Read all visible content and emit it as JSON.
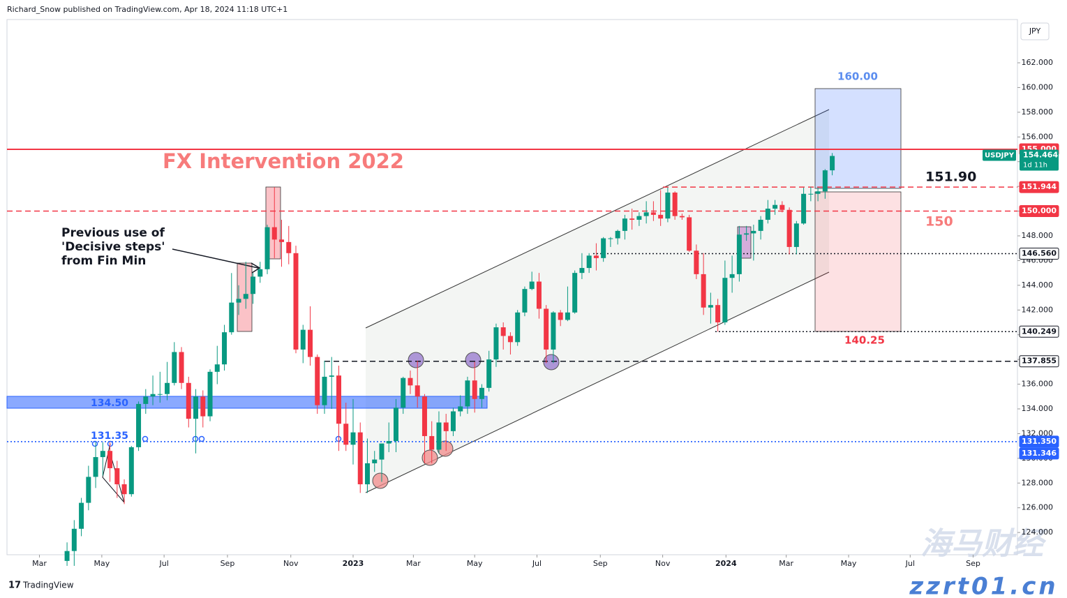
{
  "header": {
    "byline": "Richard_Snow published on TradingView.com, Apr 18, 2024 11:18 UTC+1"
  },
  "footer": {
    "brand": "TradingView"
  },
  "watermark": {
    "name": "海马财经",
    "site": "zzrt01.cn"
  },
  "chart_data": {
    "type": "candlestick",
    "currency": "JPY",
    "symbol": "USDJPY",
    "countdown": "1d 11h",
    "last_price": 154.464,
    "up_color": "#089981",
    "down_color": "#f23645",
    "x": [
      0,
      1,
      2,
      3,
      4,
      5,
      6,
      7,
      8,
      9,
      10,
      11,
      12,
      13,
      14,
      15,
      16,
      17,
      18,
      19,
      20,
      21,
      22,
      23,
      24,
      25,
      26,
      27,
      28,
      29,
      30,
      31,
      32,
      33,
      34,
      35,
      36,
      37,
      38,
      39,
      40,
      41,
      42,
      43,
      44,
      45,
      46,
      47,
      48,
      49,
      50,
      51,
      52,
      53,
      54,
      55,
      56,
      57,
      58,
      59,
      60,
      61,
      62,
      63,
      64,
      65,
      66,
      67,
      68,
      69,
      70,
      71,
      72,
      73,
      74,
      75,
      76,
      77,
      78,
      79,
      80,
      81,
      82,
      83,
      84,
      85,
      86,
      87,
      88,
      89,
      90,
      91,
      92,
      93,
      94,
      95,
      96,
      97,
      98,
      99,
      100,
      101,
      102,
      103,
      104,
      105,
      106,
      107
    ],
    "open": [
      121.7,
      122.5,
      124.3,
      126.4,
      128.5,
      130.1,
      130.6,
      129.2,
      127.9,
      127.1,
      130.9,
      134.4,
      135.0,
      135.2,
      135.2,
      136.1,
      138.6,
      136.1,
      133.2,
      135.0,
      133.4,
      137.0,
      137.6,
      140.2,
      142.6,
      142.9,
      143.3,
      144.7,
      145.3,
      148.7,
      147.7,
      147.5,
      146.6,
      138.8,
      140.4,
      138.2,
      134.3,
      136.6,
      136.7,
      132.8,
      131.1,
      132.1,
      127.9,
      129.6,
      129.9,
      131.2,
      131.4,
      134.1,
      136.5,
      135.9,
      135.0,
      131.8,
      130.7,
      132.9,
      132.2,
      133.8,
      134.2,
      136.3,
      134.8,
      135.7,
      138.0,
      140.6,
      139.9,
      139.4,
      141.8,
      143.7,
      144.3,
      142.1,
      138.8,
      141.8,
      141.2,
      141.8,
      145.0,
      145.4,
      146.4,
      146.2,
      147.8,
      147.8,
      148.4,
      149.4,
      149.3,
      149.6,
      149.9,
      149.7,
      149.4,
      151.5,
      149.6,
      149.5,
      146.8,
      144.9,
      142.2,
      142.4,
      141.0,
      144.6,
      144.9,
      148.1,
      148.2,
      148.4,
      149.3,
      150.2,
      150.5,
      150.1,
      147.1,
      149.0,
      151.4,
      151.4,
      151.6,
      153.3
    ],
    "high": [
      123.2,
      125.0,
      126.8,
      129.4,
      131.3,
      131.3,
      131.3,
      129.8,
      128.3,
      131.0,
      134.6,
      135.6,
      136.7,
      137.0,
      137.8,
      139.4,
      139.0,
      136.6,
      135.6,
      135.5,
      137.2,
      139.1,
      140.8,
      144.99,
      144.0,
      145.9,
      145.0,
      145.9,
      148.9,
      151.94,
      149.3,
      148.8,
      147.2,
      140.8,
      142.3,
      138.4,
      137.9,
      138.2,
      137.5,
      134.5,
      134.8,
      132.9,
      131.6,
      130.6,
      131.2,
      132.9,
      134.8,
      136.6,
      137.1,
      137.9,
      135.2,
      133.0,
      133.8,
      133.6,
      134.1,
      135.1,
      136.6,
      137.8,
      136.0,
      138.7,
      140.9,
      141.0,
      140.2,
      142.0,
      143.9,
      145.1,
      145.0,
      142.4,
      141.9,
      142.0,
      143.9,
      145.2,
      146.6,
      146.6,
      147.4,
      147.9,
      147.9,
      148.5,
      149.7,
      150.2,
      149.9,
      150.8,
      150.8,
      151.7,
      151.9,
      151.6,
      149.8,
      149.7,
      147.3,
      146.6,
      143.4,
      142.9,
      146.0,
      146.4,
      148.8,
      148.8,
      148.9,
      149.6,
      150.9,
      150.9,
      150.8,
      150.3,
      149.2,
      151.9,
      151.97,
      151.9,
      153.4,
      154.7
    ],
    "low": [
      121.3,
      121.3,
      123.7,
      125.8,
      127.6,
      128.6,
      128.1,
      126.8,
      126.3,
      126.9,
      130.6,
      133.6,
      134.3,
      134.5,
      134.7,
      135.9,
      135.6,
      132.5,
      130.4,
      132.5,
      133.0,
      136.0,
      137.1,
      140.0,
      141.6,
      142.1,
      142.5,
      144.2,
      144.9,
      146.2,
      145.5,
      145.7,
      138.5,
      137.7,
      137.5,
      133.6,
      133.6,
      134.0,
      130.6,
      130.6,
      129.5,
      127.2,
      127.2,
      128.9,
      128.1,
      130.5,
      130.5,
      133.6,
      135.2,
      134.1,
      129.6,
      129.6,
      130.4,
      130.6,
      131.8,
      133.4,
      133.6,
      133.7,
      134.1,
      135.4,
      137.4,
      138.8,
      138.4,
      139.1,
      141.5,
      143.6,
      141.3,
      137.7,
      137.7,
      140.7,
      141.1,
      141.7,
      144.5,
      145.0,
      145.2,
      145.9,
      147.1,
      147.3,
      147.7,
      148.5,
      148.8,
      149.0,
      149.2,
      148.8,
      149.1,
      149.3,
      149.3,
      146.7,
      144.5,
      141.6,
      140.9,
      140.25,
      140.8,
      143.4,
      144.3,
      147.6,
      146.0,
      147.7,
      149.0,
      149.7,
      149.9,
      146.5,
      146.5,
      148.9,
      150.8,
      150.8,
      151.0,
      152.9
    ],
    "close": [
      122.5,
      124.3,
      126.4,
      128.5,
      130.1,
      130.6,
      129.2,
      127.9,
      127.1,
      130.9,
      134.4,
      135.0,
      135.2,
      135.2,
      136.1,
      138.6,
      136.1,
      133.2,
      135.0,
      133.4,
      137.0,
      137.6,
      140.2,
      142.6,
      142.9,
      143.3,
      144.7,
      145.3,
      148.7,
      147.7,
      147.5,
      146.6,
      138.8,
      140.4,
      138.2,
      134.3,
      136.6,
      136.7,
      132.8,
      131.1,
      132.1,
      127.9,
      129.6,
      129.9,
      131.2,
      131.4,
      134.1,
      136.5,
      135.9,
      135.0,
      131.8,
      130.7,
      132.9,
      132.2,
      133.8,
      134.2,
      136.3,
      134.8,
      135.7,
      138.0,
      140.6,
      139.9,
      139.4,
      141.8,
      143.7,
      144.3,
      142.1,
      138.8,
      141.8,
      141.2,
      141.8,
      145.0,
      145.4,
      146.4,
      146.2,
      147.8,
      147.8,
      148.4,
      149.4,
      149.3,
      149.6,
      149.9,
      149.7,
      149.4,
      151.5,
      149.6,
      149.5,
      146.8,
      144.9,
      142.2,
      142.4,
      141.0,
      144.6,
      144.9,
      148.1,
      148.2,
      148.4,
      149.3,
      150.2,
      150.5,
      150.1,
      147.1,
      149.0,
      151.4,
      151.4,
      151.6,
      153.3,
      154.464
    ],
    "xlim": [
      -8.4,
      132.9
    ],
    "xticks": [
      {
        "value": -3.86,
        "label": "Mar"
      },
      {
        "value": 4.86,
        "label": "May"
      },
      {
        "value": 13.57,
        "label": "Jul"
      },
      {
        "value": 22.43,
        "label": "Sep"
      },
      {
        "value": 31.29,
        "label": "Nov"
      },
      {
        "value": 40,
        "label": "2023"
      },
      {
        "value": 48.43,
        "label": "Mar"
      },
      {
        "value": 57,
        "label": "May"
      },
      {
        "value": 65.71,
        "label": "Jul"
      },
      {
        "value": 74.57,
        "label": "Sep"
      },
      {
        "value": 83.29,
        "label": "Nov"
      },
      {
        "value": 92.14,
        "label": "2024"
      },
      {
        "value": 100.57,
        "label": "Mar"
      },
      {
        "value": 109.29,
        "label": "May"
      },
      {
        "value": 117.9,
        "label": "Jul"
      },
      {
        "value": 126.7,
        "label": "Sep"
      }
    ],
    "ylim": [
      122.2,
      165.5
    ],
    "yticks": [
      {
        "value": 124,
        "label": "124.000"
      },
      {
        "value": 126,
        "label": "126.000"
      },
      {
        "value": 128,
        "label": "128.000"
      },
      {
        "value": 130,
        "label": "130.000"
      },
      {
        "value": 132,
        "label": "132.000"
      },
      {
        "value": 134,
        "label": "134.000"
      },
      {
        "value": 136,
        "label": "136.000"
      },
      {
        "value": 138,
        "label": "138.000"
      },
      {
        "value": 140,
        "label": "140.000"
      },
      {
        "value": 142,
        "label": "142.000"
      },
      {
        "value": 144,
        "label": "144.000"
      },
      {
        "value": 146,
        "label": "146.000"
      },
      {
        "value": 148,
        "label": "148.000"
      },
      {
        "value": 150,
        "label": "150.000"
      },
      {
        "value": 152,
        "label": "152.000"
      },
      {
        "value": 154,
        "label": "154.000"
      },
      {
        "value": 156,
        "label": "156.000"
      },
      {
        "value": 158,
        "label": "158.000"
      },
      {
        "value": 160,
        "label": "160.000"
      },
      {
        "value": 162,
        "label": "162.000"
      }
    ],
    "levels": [
      {
        "value": 155,
        "label": "155.000",
        "color": "#f23645",
        "style": "solid"
      },
      {
        "value": 151.944,
        "label": "151.944",
        "color": "#f23645",
        "style": "dashed"
      },
      {
        "value": 150,
        "label": "150.000",
        "color": "#f23645",
        "style": "dashed"
      },
      {
        "value": 146.56,
        "label": "146.560",
        "color": "#131722",
        "style": "dotted"
      },
      {
        "value": 140.249,
        "label": "140.249",
        "color": "#131722",
        "style": "dotted"
      },
      {
        "value": 137.855,
        "label": "137.855",
        "color": "#131722",
        "style": "dashed"
      },
      {
        "value": 131.35,
        "label": "131.350",
        "color": "#2962ff",
        "style": "dotted"
      },
      {
        "value": 131.346,
        "label": "131.346",
        "color": "#2962ff",
        "style": "dotted"
      }
    ],
    "annotations": {
      "fx_intervention": "FX Intervention 2022",
      "decisive_steps": [
        "Previous use of",
        "'Decisive steps'",
        "from Fin Min"
      ],
      "target_high": "160.00",
      "target_low": "140.25",
      "level_151_90": "151.90",
      "level_150": "150",
      "zone_134_50": "134.50",
      "level_131_35": "131.35"
    }
  }
}
